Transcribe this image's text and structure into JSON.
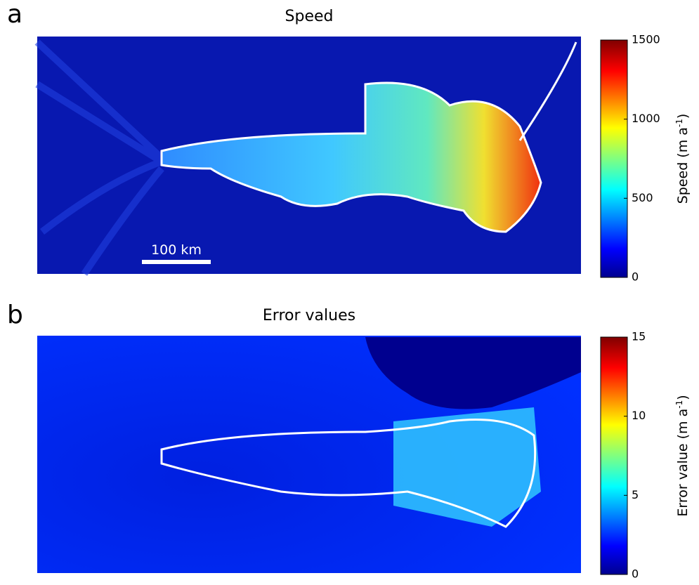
{
  "panels": [
    {
      "label": "a",
      "title": "Speed",
      "scale_bar": "100 km",
      "colorbar": {
        "label": [
          "Speed (m a",
          "-1",
          ")"
        ],
        "lim": [
          0,
          1500
        ],
        "ticks": [
          0,
          500,
          1000,
          1500
        ]
      }
    },
    {
      "label": "b",
      "title": "Error values",
      "colorbar": {
        "label": [
          "Error value (m a",
          "-1",
          ")"
        ],
        "lim": [
          0,
          15
        ],
        "ticks": [
          0,
          5,
          10,
          15
        ]
      }
    }
  ]
}
